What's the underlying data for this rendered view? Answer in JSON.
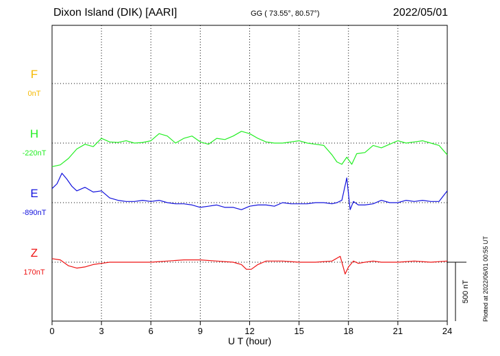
{
  "header": {
    "station": "Dixon Island (DIK)  [AARI]",
    "coords": "GG ( 73.55°,  80.57°)",
    "date": "2022/05/01"
  },
  "plotted_note": "Plotted at 2022/06/01 00:55 UT",
  "colors": {
    "F": "#f5b800",
    "H": "#22ee22",
    "E": "#1010dd",
    "Z": "#ee1111",
    "grid": "#000000"
  },
  "chart_data": {
    "type": "line",
    "xlabel": "U T (hour)",
    "xlim": [
      0,
      24
    ],
    "xticks": [
      0,
      3,
      6,
      9,
      12,
      15,
      18,
      21,
      24
    ],
    "scale_bar_label": "500 nT",
    "scale_bar_nT": 500,
    "series": [
      {
        "name": "F",
        "baseline_label": "0nT",
        "color": "#f5b800",
        "x": [],
        "values": []
      },
      {
        "name": "H",
        "baseline_label": "-220nT",
        "color": "#22ee22",
        "x": [
          0,
          0.5,
          1,
          1.5,
          2,
          2.5,
          3,
          3.5,
          4,
          4.5,
          5,
          5.5,
          6,
          6.5,
          7,
          7.5,
          8,
          8.5,
          9,
          9.5,
          10,
          10.5,
          11,
          11.5,
          12,
          12.5,
          13,
          13.5,
          14,
          14.5,
          15,
          15.5,
          16,
          16.5,
          17,
          17.3,
          17.6,
          17.9,
          18.2,
          18.5,
          19,
          19.5,
          20,
          20.5,
          21,
          21.5,
          22,
          22.5,
          23,
          23.5,
          24
        ],
        "values": [
          -200,
          -185,
          -130,
          -50,
          -10,
          -30,
          40,
          10,
          5,
          20,
          0,
          5,
          20,
          80,
          60,
          0,
          40,
          60,
          10,
          -10,
          40,
          30,
          60,
          100,
          80,
          40,
          10,
          0,
          0,
          10,
          20,
          0,
          -10,
          -20,
          -100,
          -160,
          -180,
          -120,
          -180,
          -90,
          -80,
          -20,
          -40,
          -10,
          20,
          0,
          10,
          20,
          0,
          -20,
          -100
        ]
      },
      {
        "name": "E",
        "baseline_label": "-890nT",
        "color": "#1010dd",
        "x": [
          0,
          0.3,
          0.6,
          0.9,
          1.2,
          1.5,
          2,
          2.5,
          3,
          3.5,
          4,
          4.5,
          5,
          5.5,
          6,
          6.5,
          7,
          7.5,
          8,
          8.5,
          9,
          9.5,
          10,
          10.5,
          11,
          11.5,
          12,
          12.5,
          13,
          13.5,
          14,
          14.5,
          15,
          15.5,
          16,
          16.5,
          17,
          17.3,
          17.6,
          17.9,
          18.1,
          18.3,
          18.6,
          19,
          19.5,
          20,
          20.5,
          21,
          21.5,
          22,
          22.5,
          23,
          23.5,
          24
        ],
        "values": [
          120,
          160,
          250,
          200,
          140,
          100,
          130,
          90,
          100,
          40,
          20,
          10,
          10,
          20,
          10,
          20,
          0,
          -10,
          -10,
          -20,
          -40,
          -30,
          -20,
          -40,
          -40,
          -60,
          -30,
          -20,
          -20,
          -30,
          0,
          -10,
          -10,
          -10,
          0,
          0,
          -10,
          0,
          20,
          210,
          -60,
          10,
          -20,
          -20,
          -10,
          20,
          0,
          0,
          20,
          10,
          20,
          10,
          10,
          100
        ]
      },
      {
        "name": "Z",
        "baseline_label": "170nT",
        "color": "#ee1111",
        "x": [
          0,
          0.5,
          1,
          1.5,
          2,
          2.5,
          3,
          3.5,
          4,
          5,
          6,
          7,
          8,
          9,
          10,
          11,
          11.5,
          11.8,
          12.1,
          12.5,
          13,
          14,
          15,
          16,
          17,
          17.5,
          17.8,
          18,
          18.3,
          18.6,
          19,
          19.5,
          20,
          21,
          22,
          23,
          24
        ],
        "values": [
          30,
          20,
          -30,
          -50,
          -40,
          -20,
          -10,
          0,
          0,
          0,
          0,
          10,
          20,
          20,
          10,
          0,
          -20,
          -60,
          -60,
          -20,
          10,
          10,
          0,
          0,
          10,
          50,
          -100,
          -40,
          10,
          -10,
          0,
          10,
          0,
          0,
          10,
          0,
          10
        ]
      }
    ]
  }
}
